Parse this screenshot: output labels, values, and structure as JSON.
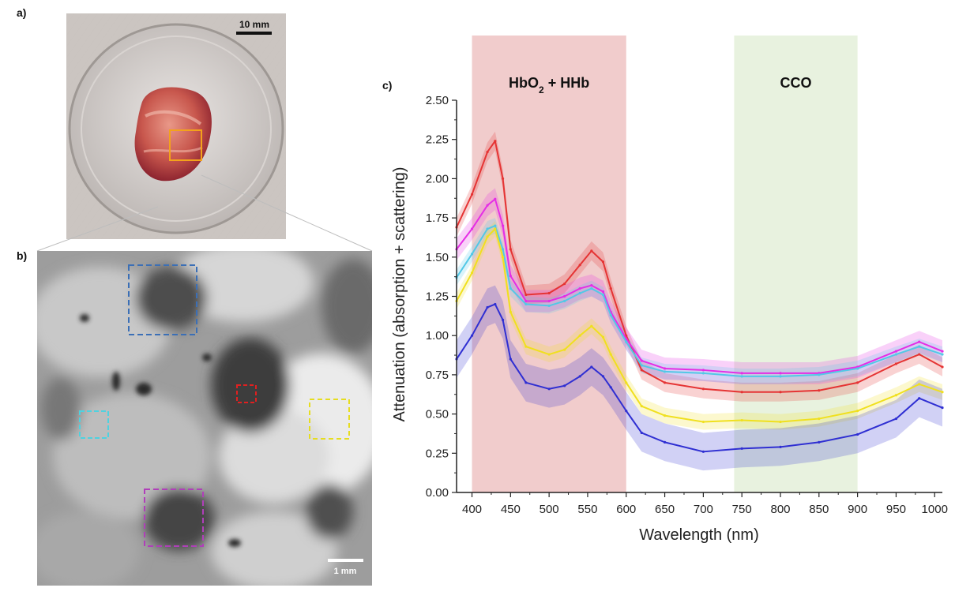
{
  "panels": {
    "a_label": "a)",
    "b_label": "b)",
    "c_label": "c)",
    "a_scale_bar": "10 mm",
    "b_scale_bar": "1 mm"
  },
  "chart_data": {
    "type": "line",
    "title": "",
    "xlabel": "Wavelength (nm)",
    "ylabel": "Attenuation (absorption + scattering)",
    "xlim": [
      380,
      1010
    ],
    "ylim": [
      0,
      2.5
    ],
    "x_ticks": [
      400,
      450,
      500,
      550,
      600,
      650,
      700,
      750,
      800,
      850,
      900,
      950,
      1000
    ],
    "y_ticks": [
      "0.00",
      "0.25",
      "0.50",
      "0.75",
      "1.00",
      "1.25",
      "1.50",
      "1.75",
      "2.00",
      "2.25",
      "2.50"
    ],
    "grid": false,
    "shaded_regions": [
      {
        "label_main": "HbO",
        "label_sub": "2",
        "label_rest": " + HHb",
        "x_range": [
          400,
          600
        ],
        "color": "#efc6c6"
      },
      {
        "label_main": "CCO",
        "label_sub": "",
        "label_rest": "",
        "x_range": [
          740,
          900
        ],
        "color": "#e6f1dc"
      }
    ],
    "x": [
      380,
      400,
      420,
      430,
      440,
      450,
      470,
      500,
      520,
      540,
      555,
      570,
      580,
      600,
      620,
      650,
      700,
      750,
      800,
      850,
      900,
      950,
      980,
      1010
    ],
    "series": [
      {
        "color": "#e53434",
        "band": 0.06,
        "values": [
          1.69,
          1.9,
          2.17,
          2.24,
          2.0,
          1.55,
          1.26,
          1.27,
          1.33,
          1.45,
          1.54,
          1.47,
          1.3,
          1.0,
          0.78,
          0.7,
          0.66,
          0.64,
          0.64,
          0.65,
          0.7,
          0.82,
          0.88,
          0.8
        ]
      },
      {
        "color": "#e52ee5",
        "band": 0.07,
        "values": [
          1.55,
          1.68,
          1.83,
          1.87,
          1.7,
          1.38,
          1.22,
          1.22,
          1.25,
          1.3,
          1.32,
          1.28,
          1.15,
          0.98,
          0.84,
          0.79,
          0.78,
          0.76,
          0.76,
          0.76,
          0.8,
          0.9,
          0.96,
          0.9
        ]
      },
      {
        "color": "#52c8e6",
        "band": 0.05,
        "values": [
          1.37,
          1.52,
          1.68,
          1.7,
          1.55,
          1.3,
          1.2,
          1.19,
          1.22,
          1.27,
          1.3,
          1.26,
          1.13,
          0.96,
          0.81,
          0.77,
          0.76,
          0.74,
          0.74,
          0.75,
          0.79,
          0.88,
          0.93,
          0.88
        ]
      },
      {
        "color": "#f0e01e",
        "band": 0.05,
        "values": [
          1.22,
          1.4,
          1.63,
          1.68,
          1.5,
          1.15,
          0.93,
          0.88,
          0.91,
          1.0,
          1.06,
          0.99,
          0.88,
          0.7,
          0.55,
          0.49,
          0.45,
          0.46,
          0.45,
          0.47,
          0.52,
          0.62,
          0.69,
          0.64
        ]
      },
      {
        "color": "#2f2fd2",
        "band": 0.12,
        "values": [
          0.85,
          1.0,
          1.18,
          1.2,
          1.1,
          0.85,
          0.7,
          0.66,
          0.68,
          0.74,
          0.8,
          0.74,
          0.67,
          0.52,
          0.38,
          0.32,
          0.26,
          0.28,
          0.29,
          0.32,
          0.37,
          0.47,
          0.6,
          0.54
        ]
      }
    ]
  }
}
